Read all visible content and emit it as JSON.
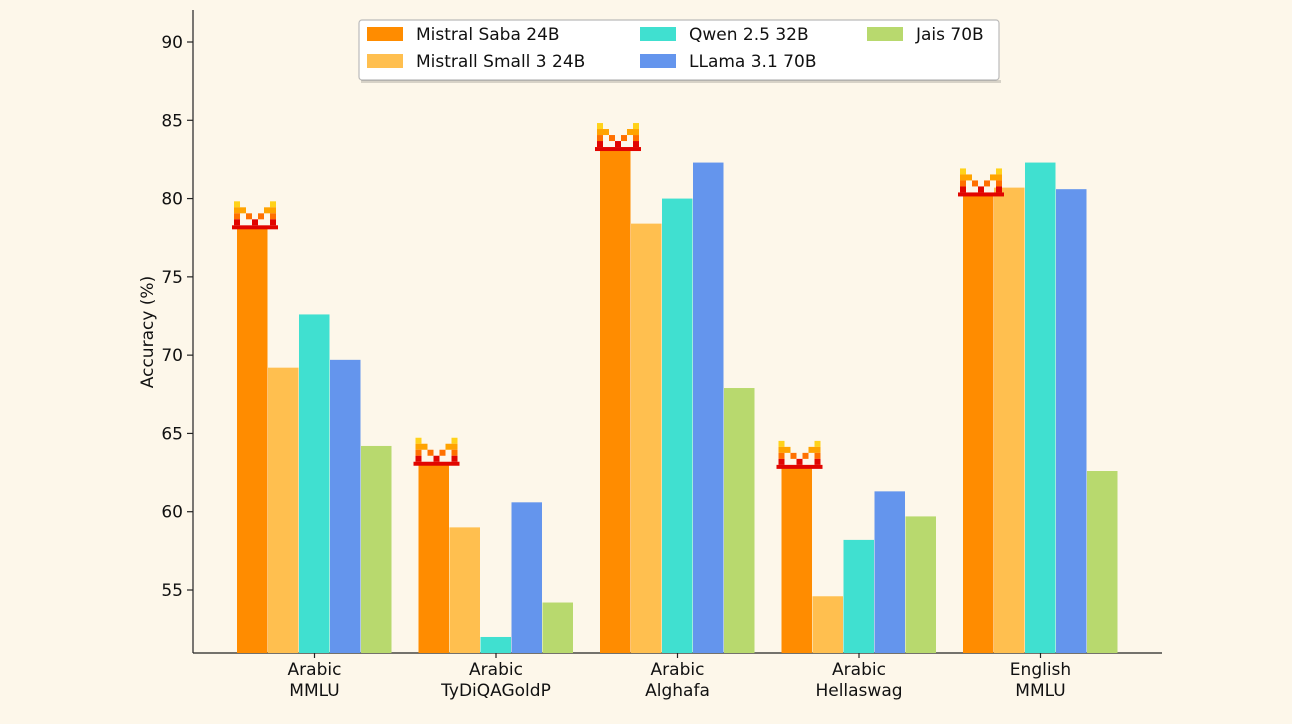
{
  "chart_data": {
    "type": "bar",
    "title": "",
    "xlabel": "",
    "ylabel": "Accuracy (%)",
    "ylim": [
      51,
      93
    ],
    "yticks": [
      55,
      60,
      65,
      70,
      75,
      80,
      85,
      90
    ],
    "grid": false,
    "legend_position": "top-center",
    "categories": [
      [
        "Arabic",
        "MMLU"
      ],
      [
        "Arabic",
        "TyDiQAGoldP"
      ],
      [
        "Arabic",
        "Alghafa"
      ],
      [
        "Arabic",
        "Hellaswag"
      ],
      [
        "English",
        "MMLU"
      ]
    ],
    "series": [
      {
        "name": "Mistral Saba 24B",
        "color": "#ff8c00",
        "values": [
          78.1,
          63.0,
          83.1,
          62.8,
          80.2
        ]
      },
      {
        "name": "Mistrall Small 3 24B",
        "color": "#ffbf4f",
        "values": [
          69.2,
          59.0,
          78.4,
          54.6,
          80.7
        ]
      },
      {
        "name": "Qwen 2.5 32B",
        "color": "#40e0d0",
        "values": [
          72.6,
          52.0,
          80.0,
          58.2,
          82.3
        ]
      },
      {
        "name": "LLama 3.1 70B",
        "color": "#6495ed",
        "values": [
          69.7,
          60.6,
          82.3,
          61.3,
          80.6
        ]
      },
      {
        "name": "Jais 70B",
        "color": "#b8d96e",
        "values": [
          64.2,
          54.2,
          67.9,
          59.7,
          62.6
        ]
      }
    ],
    "highlight_series": "Mistral Saba 24B",
    "highlight_icon": "mistral-logo-icon"
  }
}
